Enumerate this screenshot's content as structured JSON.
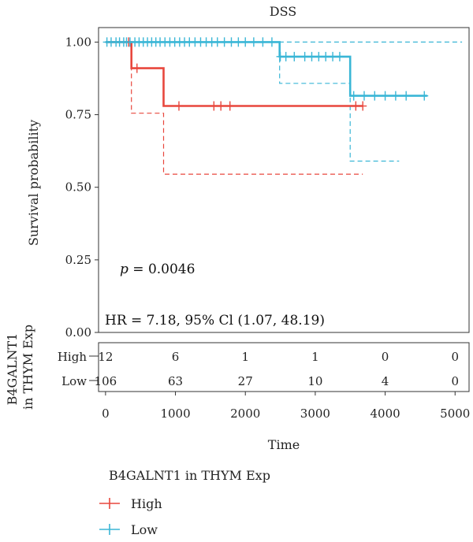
{
  "chart_data": {
    "type": "line",
    "subtype": "kaplan-meier",
    "title": "DSS",
    "xlabel": "Time",
    "ylabel": "Survival probability",
    "xlim": [
      -100,
      5200
    ],
    "ylim": [
      0,
      1.05
    ],
    "x_ticks": [
      0,
      1000,
      2000,
      3000,
      4000,
      5000
    ],
    "y_ticks": [
      0.0,
      0.25,
      0.5,
      0.75,
      1.0
    ],
    "y_tick_labels": [
      "0.00",
      "0.25",
      "0.50",
      "0.75",
      "1.00"
    ],
    "grid": false,
    "annotations": {
      "p_prefix": "p",
      "p_value": " = 0.0046",
      "hr_text": "HR = 7.18, 95% Cl (1.07, 48.19)"
    },
    "series": [
      {
        "name": "High",
        "color": "#E8473D",
        "steps": [
          [
            0,
            1.0
          ],
          [
            370,
            1.0
          ],
          [
            370,
            0.91
          ],
          [
            830,
            0.91
          ],
          [
            830,
            0.78
          ],
          [
            3680,
            0.78
          ]
        ],
        "ci_lower": [
          [
            370,
            1.0
          ],
          [
            370,
            0.755
          ],
          [
            830,
            0.755
          ],
          [
            830,
            0.545
          ],
          [
            3680,
            0.545
          ]
        ],
        "ci_upper": [],
        "censors": [
          [
            330,
            1.0
          ],
          [
            450,
            0.91
          ],
          [
            1050,
            0.78
          ],
          [
            1550,
            0.78
          ],
          [
            1650,
            0.78
          ],
          [
            1780,
            0.78
          ],
          [
            3580,
            0.78
          ],
          [
            3680,
            0.78
          ]
        ]
      },
      {
        "name": "Low",
        "color": "#3AB6D6",
        "steps": [
          [
            0,
            1.0
          ],
          [
            2490,
            1.0
          ],
          [
            2490,
            0.95
          ],
          [
            3500,
            0.95
          ],
          [
            3500,
            0.815
          ],
          [
            4600,
            0.815
          ]
        ],
        "ci_lower": [
          [
            2490,
            1.0
          ],
          [
            2490,
            0.858
          ],
          [
            3500,
            0.858
          ],
          [
            3500,
            0.59
          ],
          [
            4200,
            0.59
          ]
        ],
        "ci_upper": [
          [
            0,
            1.0
          ],
          [
            5100,
            1.0
          ]
        ],
        "censors": [
          [
            20,
            1.0
          ],
          [
            80,
            1.0
          ],
          [
            150,
            1.0
          ],
          [
            200,
            1.0
          ],
          [
            260,
            1.0
          ],
          [
            300,
            1.0
          ],
          [
            350,
            1.0
          ],
          [
            420,
            1.0
          ],
          [
            480,
            1.0
          ],
          [
            540,
            1.0
          ],
          [
            600,
            1.0
          ],
          [
            660,
            1.0
          ],
          [
            720,
            1.0
          ],
          [
            780,
            1.0
          ],
          [
            850,
            1.0
          ],
          [
            920,
            1.0
          ],
          [
            990,
            1.0
          ],
          [
            1060,
            1.0
          ],
          [
            1130,
            1.0
          ],
          [
            1200,
            1.0
          ],
          [
            1280,
            1.0
          ],
          [
            1360,
            1.0
          ],
          [
            1440,
            1.0
          ],
          [
            1520,
            1.0
          ],
          [
            1600,
            1.0
          ],
          [
            1700,
            1.0
          ],
          [
            1800,
            1.0
          ],
          [
            1900,
            1.0
          ],
          [
            2000,
            1.0
          ],
          [
            2120,
            1.0
          ],
          [
            2250,
            1.0
          ],
          [
            2380,
            1.0
          ],
          [
            2500,
            0.95
          ],
          [
            2580,
            0.95
          ],
          [
            2700,
            0.95
          ],
          [
            2850,
            0.95
          ],
          [
            2950,
            0.95
          ],
          [
            3050,
            0.95
          ],
          [
            3150,
            0.95
          ],
          [
            3250,
            0.95
          ],
          [
            3350,
            0.95
          ],
          [
            3550,
            0.815
          ],
          [
            3700,
            0.815
          ],
          [
            3850,
            0.815
          ],
          [
            4000,
            0.815
          ],
          [
            4150,
            0.815
          ],
          [
            4300,
            0.815
          ],
          [
            4560,
            0.815
          ]
        ]
      }
    ],
    "risk_table": {
      "title": "B4GALNT1 in THYM Exp",
      "title_lines": [
        "B4GALNT1",
        "in THYM Exp"
      ],
      "times": [
        0,
        1000,
        2000,
        3000,
        4000,
        5000
      ],
      "rows": [
        {
          "name": "High",
          "values": [
            12,
            6,
            1,
            1,
            0,
            0
          ]
        },
        {
          "name": "Low",
          "values": [
            106,
            63,
            27,
            10,
            4,
            0
          ]
        }
      ]
    },
    "legend": {
      "title": "B4GALNT1 in THYM Exp",
      "placement": "bottom",
      "items": [
        {
          "label": "High",
          "color": "#E8473D"
        },
        {
          "label": "Low",
          "color": "#3AB6D6"
        }
      ]
    }
  }
}
